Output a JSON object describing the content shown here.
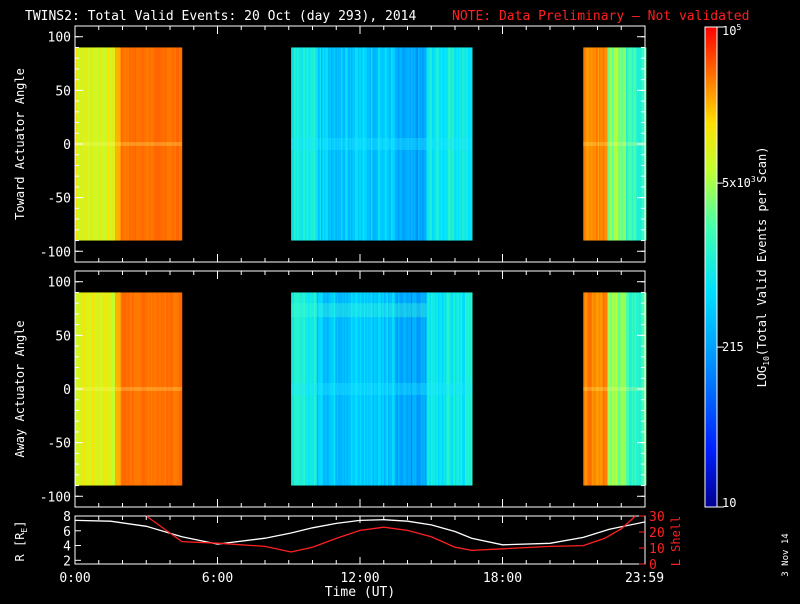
{
  "header": {
    "title": "TWINS2: Total Valid Events: 20 Oct (day 293), 2014",
    "note": "NOTE: Data Preliminary — Not validated"
  },
  "colors": {
    "note": "#ff2020",
    "orbit_r": "#ffffff",
    "orbit_l": "#ff2020",
    "axes": "#ffffff",
    "background": "#000000"
  },
  "chart_data": [
    {
      "type": "heatmap",
      "panel": "toward",
      "ylabel": "Toward Actuator Angle",
      "ylim": [
        -110,
        110
      ],
      "yticks": [
        100,
        50,
        0,
        -50,
        -100
      ],
      "data_extent": [
        -90,
        90
      ],
      "xlim": [
        0,
        24
      ],
      "segments": [
        {
          "start": 0.0,
          "end": 4.5,
          "character": "high (green-yellow to orange)"
        },
        {
          "start": 9.1,
          "end": 16.7,
          "character": "moderate (blue/cyan)"
        },
        {
          "start": 21.4,
          "end": 24.0,
          "character": "high (orange to cyan)"
        }
      ]
    },
    {
      "type": "heatmap",
      "panel": "away",
      "ylabel": "Away Actuator Angle",
      "ylim": [
        -110,
        110
      ],
      "yticks": [
        100,
        50,
        0,
        -50,
        -100
      ],
      "data_extent": [
        -90,
        90
      ],
      "xlim": [
        0,
        24
      ],
      "segments": [
        {
          "start": 0.0,
          "end": 4.5,
          "character": "high (green-yellow to orange)"
        },
        {
          "start": 9.1,
          "end": 16.7,
          "character": "moderate (blue/cyan)"
        },
        {
          "start": 21.4,
          "end": 24.0,
          "character": "high (orange to cyan)"
        }
      ]
    },
    {
      "type": "line",
      "panel": "orbit",
      "xlabel": "Time (UT)",
      "xticks": [
        "0:00",
        "6:00",
        "12:00",
        "18:00",
        "23:59"
      ],
      "xtick_hours": [
        0,
        6,
        12,
        18,
        23.98
      ],
      "y_left": {
        "label": "R [R",
        "label_sub": "E",
        "label_end": "]",
        "ticks": [
          8,
          6,
          4,
          2
        ],
        "range": [
          1.5,
          8
        ]
      },
      "y_right": {
        "label": "L Shell",
        "ticks": [
          30,
          20,
          10,
          0
        ],
        "range": [
          0,
          30
        ]
      },
      "series": [
        {
          "name": "R",
          "axis": "left",
          "x": [
            0,
            1.5,
            3,
            4.5,
            6,
            8,
            9.1,
            10,
            11,
            12,
            13,
            14,
            15,
            16,
            16.7,
            18,
            20,
            21.4,
            22.5,
            24
          ],
          "y": [
            7.4,
            7.3,
            6.6,
            5.2,
            4.2,
            5.0,
            5.7,
            6.4,
            7.0,
            7.4,
            7.5,
            7.3,
            6.8,
            5.9,
            5.0,
            4.1,
            4.3,
            5.1,
            6.2,
            7.2
          ]
        },
        {
          "name": "L Shell",
          "axis": "right",
          "x": [
            3.0,
            4.5,
            6.0,
            8.0,
            9.1,
            10.0,
            11.0,
            12.0,
            13.0,
            14.0,
            15.0,
            16.0,
            16.7,
            18.0,
            20.0,
            21.4,
            22.3,
            23.0,
            23.6
          ],
          "y": [
            30,
            14,
            13,
            11,
            7.5,
            10.5,
            16,
            21,
            23,
            21,
            17,
            10.5,
            8.5,
            9.5,
            11,
            11.5,
            16,
            22,
            31
          ]
        }
      ]
    }
  ],
  "colorbar": {
    "label_pre": "LOG",
    "label_sub": "10",
    "label_post": "(Total Valid Events per Scan)",
    "ticks": [
      {
        "base": "10",
        "sup": "5",
        "value": 100000
      },
      {
        "base": "5x10",
        "sup": "3",
        "value": 5000
      },
      {
        "base": "215",
        "sup": "",
        "value": 215
      },
      {
        "base": "10",
        "sup": "",
        "value": 10
      }
    ],
    "range": [
      10,
      100000
    ]
  },
  "side_date": "3 Nov 14"
}
